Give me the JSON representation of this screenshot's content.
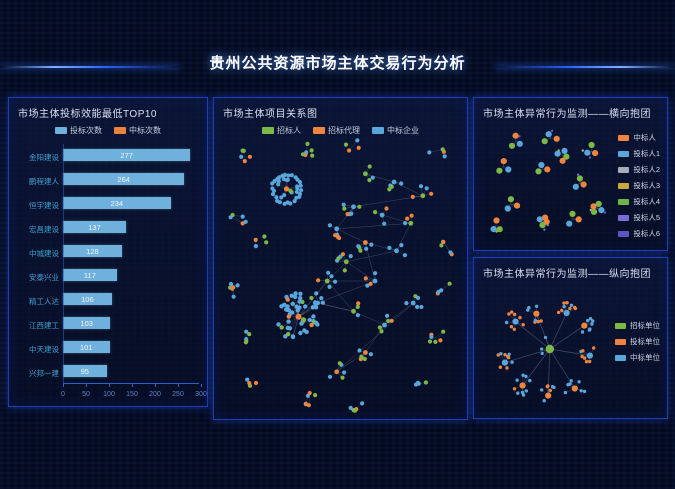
{
  "page": {
    "title": "贵州公共资源市场主体交易行为分析"
  },
  "theme": {
    "bg": "#040a1e",
    "panel_border": "#1e3fb4",
    "bar_color": "#6fb1dc",
    "axis_color": "#2a5fd0",
    "tick_color": "#5b86c4",
    "category_color": "#3fa0d2",
    "node_blue": "#57a7dc",
    "node_green": "#7cb845",
    "node_orange": "#ef8440",
    "node_gray": "#a7adb8",
    "node_yellow": "#c9a93e",
    "node_purple": "#7a6bd6",
    "node_violet": "#5b54c9",
    "edge_color": "rgba(190,200,220,0.32)"
  },
  "panels": {
    "bar": {
      "title": "市场主体投标效能最低TOP10",
      "legend": [
        {
          "label": "投标次数",
          "color": "#6fb1dc"
        },
        {
          "label": "中标次数",
          "color": "#e8823c"
        }
      ]
    },
    "relation": {
      "title": "市场主体项目关系图",
      "legend": [
        {
          "label": "招标人",
          "color": "#7cb845"
        },
        {
          "label": "招标代理",
          "color": "#ef8440"
        },
        {
          "label": "中标企业",
          "color": "#57a7dc"
        }
      ]
    },
    "horizontal": {
      "title": "市场主体异常行为监测——横向抱团",
      "legend": [
        {
          "label": "中标人",
          "color": "#ef8440"
        },
        {
          "label": "投标人1",
          "color": "#57a7dc"
        },
        {
          "label": "投标人2",
          "color": "#a7adb8"
        },
        {
          "label": "投标人3",
          "color": "#c9a93e"
        },
        {
          "label": "投标人4",
          "color": "#6db54a"
        },
        {
          "label": "投标人5",
          "color": "#7a6bd6"
        },
        {
          "label": "投标人6",
          "color": "#5b54c9"
        }
      ]
    },
    "vertical": {
      "title": "市场主体异常行为监测——纵向抱团",
      "legend": [
        {
          "label": "招标单位",
          "color": "#7cb845"
        },
        {
          "label": "投标单位",
          "color": "#ef8440"
        },
        {
          "label": "中标单位",
          "color": "#57a7dc"
        }
      ]
    }
  },
  "chart_data": [
    {
      "type": "bar",
      "panel": "bar",
      "title": "市场主体投标效能最低TOP10",
      "orientation": "horizontal",
      "categories": [
        "金阳建设",
        "鹏程建人",
        "恒宇建设",
        "宏昌建设",
        "中城建设",
        "安泰兴业",
        "精工人达",
        "江西建工",
        "中天建设",
        "兴邦一建"
      ],
      "series": [
        {
          "name": "投标次数",
          "values": [
            277,
            264,
            234,
            137,
            128,
            117,
            106,
            103,
            101,
            95
          ]
        }
      ],
      "xlabel": "",
      "ylabel": "",
      "xlim": [
        0,
        300
      ],
      "xticks": [
        0,
        50,
        100,
        150,
        200,
        250,
        300
      ],
      "legend_position": "top",
      "grid": false
    },
    {
      "type": "scatter",
      "panel": "relation",
      "title": "市场主体项目关系图",
      "description": "力导向网络图：招标人(绿)、招标代理(橙)、中标企业(蓝)，含一个环状团、一个致密团、中部网状链与若干边缘孤立小团",
      "ring_cluster": {
        "cx": 0.27,
        "cy": 0.185,
        "core": "orange",
        "ring_nodes": 26,
        "inner_nodes": 11,
        "radius": 14
      },
      "dense_cluster": {
        "cx": 0.32,
        "cy": 0.65,
        "core": "orange",
        "nodes": 48,
        "max_radius": 24
      },
      "web_stars": [
        [
          0.6,
          0.13
        ],
        [
          0.72,
          0.16
        ],
        [
          0.84,
          0.21
        ],
        [
          0.55,
          0.25
        ],
        [
          0.67,
          0.28
        ],
        [
          0.79,
          0.31
        ],
        [
          0.48,
          0.33
        ],
        [
          0.6,
          0.38
        ],
        [
          0.73,
          0.41
        ],
        [
          0.52,
          0.45
        ],
        [
          0.44,
          0.52
        ],
        [
          0.64,
          0.52
        ],
        [
          0.4,
          0.6
        ],
        [
          0.55,
          0.63
        ],
        [
          0.68,
          0.68
        ],
        [
          0.6,
          0.78
        ],
        [
          0.48,
          0.85
        ],
        [
          0.8,
          0.6
        ]
      ],
      "satellites": [
        [
          0.1,
          0.06
        ],
        [
          0.36,
          0.04
        ],
        [
          0.55,
          0.03
        ],
        [
          0.9,
          0.05
        ],
        [
          0.07,
          0.3
        ],
        [
          0.16,
          0.38
        ],
        [
          0.06,
          0.55
        ],
        [
          0.1,
          0.72
        ],
        [
          0.95,
          0.4
        ],
        [
          0.93,
          0.55
        ],
        [
          0.9,
          0.72
        ],
        [
          0.13,
          0.9
        ],
        [
          0.37,
          0.95
        ],
        [
          0.55,
          0.97
        ],
        [
          0.83,
          0.88
        ]
      ]
    },
    {
      "type": "scatter",
      "panel": "horizontal",
      "title": "市场主体异常行为监测——横向抱团",
      "description": "散布的小型围标团伙，每团3-5个节点（中标人橙/投标人蓝绿等）",
      "groups": [
        [
          0.24,
          0.09
        ],
        [
          0.52,
          0.06
        ],
        [
          0.62,
          0.22
        ],
        [
          0.85,
          0.18
        ],
        [
          0.14,
          0.33
        ],
        [
          0.46,
          0.35
        ],
        [
          0.76,
          0.48
        ],
        [
          0.2,
          0.68
        ],
        [
          0.46,
          0.84
        ],
        [
          0.7,
          0.82
        ],
        [
          0.9,
          0.72
        ],
        [
          0.08,
          0.88
        ]
      ]
    },
    {
      "type": "scatter",
      "panel": "vertical",
      "title": "市场主体异常行为监测——纵向抱团",
      "description": "中心招标单位(绿)向外辐射9个中标/投标小团",
      "hub": {
        "cx": 0.52,
        "cy": 0.5,
        "arms": 9,
        "arm_dist": [
          36,
          54
        ]
      }
    }
  ]
}
